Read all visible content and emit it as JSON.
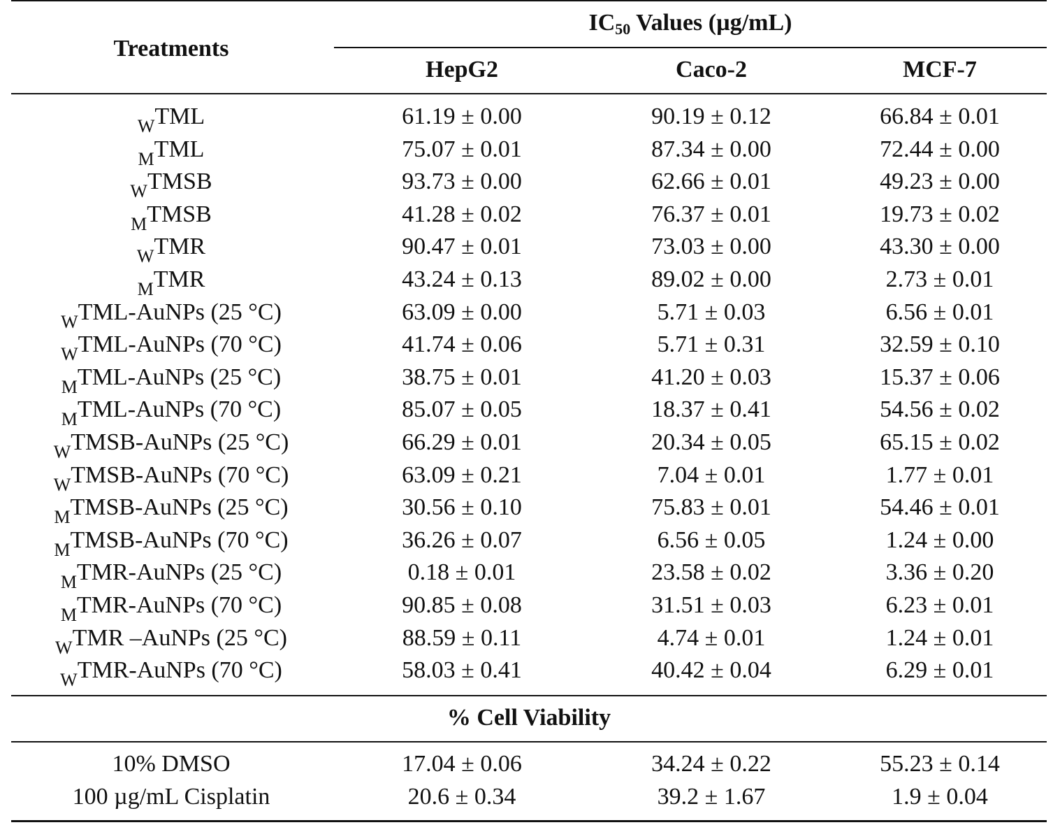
{
  "header": {
    "treatments": "Treatments",
    "ic50_prefix": "IC",
    "ic50_sub": "50",
    "ic50_suffix": " Values (µg/mL)",
    "columns": [
      "HepG2",
      "Caco-2",
      "MCF-7"
    ]
  },
  "rows": [
    {
      "sub": "W",
      "name": "TML",
      "hepg2": "61.19 ± 0.00",
      "caco2": "90.19 ± 0.12",
      "mcf7": "66.84 ± 0.01"
    },
    {
      "sub": "M",
      "name": "TML",
      "hepg2": "75.07 ± 0.01",
      "caco2": "87.34 ± 0.00",
      "mcf7": "72.44 ± 0.00"
    },
    {
      "sub": "W",
      "name": "TMSB",
      "hepg2": "93.73 ± 0.00",
      "caco2": "62.66 ± 0.01",
      "mcf7": "49.23 ± 0.00"
    },
    {
      "sub": "M",
      "name": "TMSB",
      "hepg2": "41.28 ± 0.02",
      "caco2": "76.37 ± 0.01",
      "mcf7": "19.73 ± 0.02"
    },
    {
      "sub": "W",
      "name": "TMR",
      "hepg2": "90.47 ± 0.01",
      "caco2": "73.03 ± 0.00",
      "mcf7": "43.30 ± 0.00"
    },
    {
      "sub": "M",
      "name": "TMR",
      "hepg2": "43.24 ± 0.13",
      "caco2": "89.02 ± 0.00",
      "mcf7": "2.73 ± 0.01"
    },
    {
      "sub": "W",
      "name": "TML-AuNPs (25 °C)",
      "hepg2": "63.09 ± 0.00",
      "caco2": "5.71 ± 0.03",
      "mcf7": "6.56 ± 0.01"
    },
    {
      "sub": "W",
      "name": "TML-AuNPs (70 °C)",
      "hepg2": "41.74 ± 0.06",
      "caco2": "5.71 ± 0.31",
      "mcf7": "32.59 ± 0.10"
    },
    {
      "sub": "M",
      "name": "TML-AuNPs (25 °C)",
      "hepg2": "38.75 ± 0.01",
      "caco2": "41.20 ± 0.03",
      "mcf7": "15.37 ± 0.06"
    },
    {
      "sub": "M",
      "name": "TML-AuNPs (70 °C)",
      "hepg2": "85.07 ± 0.05",
      "caco2": "18.37 ± 0.41",
      "mcf7": "54.56 ± 0.02"
    },
    {
      "sub": "W",
      "name": "TMSB-AuNPs (25 °C)",
      "hepg2": "66.29 ± 0.01",
      "caco2": "20.34 ± 0.05",
      "mcf7": "65.15 ± 0.02"
    },
    {
      "sub": "W",
      "name": "TMSB-AuNPs (70 °C)",
      "hepg2": "63.09 ± 0.21",
      "caco2": "7.04 ± 0.01",
      "mcf7": "1.77 ± 0.01"
    },
    {
      "sub": "M",
      "name": "TMSB-AuNPs (25 °C)",
      "hepg2": "30.56 ± 0.10",
      "caco2": "75.83 ± 0.01",
      "mcf7": "54.46 ± 0.01"
    },
    {
      "sub": "M",
      "name": "TMSB-AuNPs (70 °C)",
      "hepg2": "36.26 ± 0.07",
      "caco2": "6.56 ± 0.05",
      "mcf7": "1.24 ± 0.00"
    },
    {
      "sub": "M",
      "name": "TMR-AuNPs (25 °C)",
      "hepg2": "0.18 ± 0.01",
      "caco2": "23.58 ± 0.02",
      "mcf7": "3.36 ± 0.20"
    },
    {
      "sub": "M",
      "name": "TMR-AuNPs (70 °C)",
      "hepg2": "90.85 ± 0.08",
      "caco2": "31.51 ± 0.03",
      "mcf7": "6.23 ± 0.01"
    },
    {
      "sub": "W",
      "name": "TMR –AuNPs (25 °C)",
      "hepg2": "88.59 ± 0.11",
      "caco2": "4.74 ± 0.01",
      "mcf7": "1.24 ± 0.01"
    },
    {
      "sub": "W",
      "name": "TMR-AuNPs (70 °C)",
      "hepg2": "58.03 ± 0.41",
      "caco2": "40.42 ± 0.04",
      "mcf7": "6.29 ± 0.01"
    }
  ],
  "section_title": "% Cell Viability",
  "viability_rows": [
    {
      "name": "10% DMSO",
      "hepg2": "17.04 ± 0.06",
      "caco2": "34.24 ± 0.22",
      "mcf7": "55.23 ± 0.14"
    },
    {
      "name": "100 µg/mL Cisplatin",
      "hepg2": "20.6 ± 0.34",
      "caco2": "39.2 ± 1.67",
      "mcf7": "1.9 ± 0.04"
    }
  ]
}
